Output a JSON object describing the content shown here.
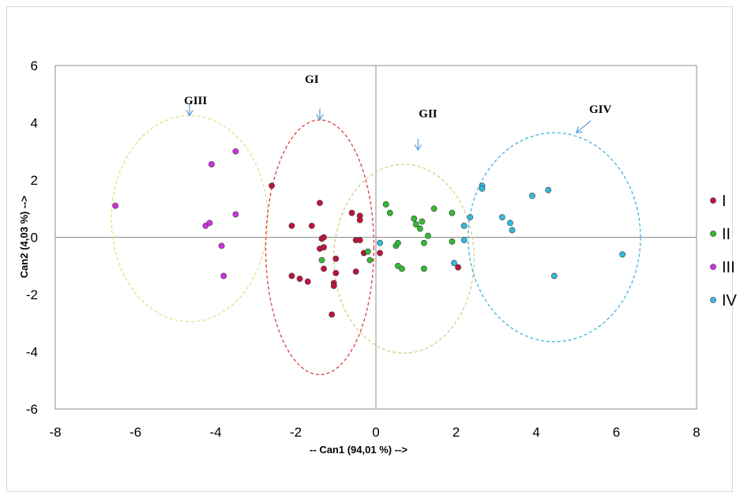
{
  "chart_data": {
    "type": "scatter",
    "title": "",
    "xlabel": "-- Can1 (94,01 %) -->",
    "ylabel": "Can2 (4,03 %) -->",
    "xlim": [
      -8,
      8
    ],
    "ylim": [
      -6,
      6
    ],
    "x_ticks": [
      "-8",
      "-6",
      "-4",
      "-2",
      "0",
      "2",
      "4",
      "6",
      "8"
    ],
    "y_ticks": [
      "-6",
      "-4",
      "-2",
      "0",
      "2",
      "4",
      "6"
    ],
    "grid": false,
    "legend_position": "right",
    "series": [
      {
        "name": "I",
        "color": "#c0143c",
        "points": [
          [
            -2.6,
            1.8
          ],
          [
            -2.1,
            0.4
          ],
          [
            -1.6,
            0.4
          ],
          [
            -1.4,
            1.2
          ],
          [
            -1.35,
            -0.05
          ],
          [
            -1.3,
            0.0
          ],
          [
            -1.4,
            -0.4
          ],
          [
            -1.3,
            -0.35
          ],
          [
            -0.6,
            0.85
          ],
          [
            -0.4,
            0.75
          ],
          [
            -0.4,
            0.6
          ],
          [
            -0.5,
            -0.1
          ],
          [
            -0.4,
            -0.1
          ],
          [
            -0.3,
            -0.55
          ],
          [
            -1.0,
            -0.75
          ],
          [
            -1.3,
            -1.1
          ],
          [
            -2.1,
            -1.35
          ],
          [
            -1.9,
            -1.45
          ],
          [
            -1.7,
            -1.55
          ],
          [
            -1.0,
            -1.25
          ],
          [
            -1.05,
            -1.6
          ],
          [
            -1.05,
            -1.7
          ],
          [
            -0.5,
            -1.2
          ],
          [
            -1.1,
            -2.7
          ],
          [
            0.1,
            -0.55
          ],
          [
            2.05,
            -1.05
          ]
        ]
      },
      {
        "name": "II",
        "color": "#33bb33",
        "points": [
          [
            0.25,
            1.15
          ],
          [
            0.35,
            0.85
          ],
          [
            0.95,
            0.65
          ],
          [
            1.45,
            1.0
          ],
          [
            1.0,
            0.45
          ],
          [
            1.15,
            0.55
          ],
          [
            1.1,
            0.3
          ],
          [
            1.3,
            0.05
          ],
          [
            1.2,
            -0.2
          ],
          [
            1.9,
            0.85
          ],
          [
            1.9,
            -0.15
          ],
          [
            0.5,
            -0.3
          ],
          [
            0.55,
            -0.2
          ],
          [
            0.55,
            -1.0
          ],
          [
            0.65,
            -1.1
          ],
          [
            1.2,
            -1.1
          ],
          [
            -1.35,
            -0.8
          ],
          [
            -0.2,
            -0.5
          ],
          [
            -0.15,
            -0.8
          ]
        ]
      },
      {
        "name": "III",
        "color": "#cc33dd",
        "points": [
          [
            -6.5,
            1.1
          ],
          [
            -4.1,
            2.55
          ],
          [
            -3.5,
            3.0
          ],
          [
            -4.25,
            0.4
          ],
          [
            -4.15,
            0.5
          ],
          [
            -3.5,
            0.8
          ],
          [
            -3.85,
            -0.3
          ],
          [
            -3.8,
            -1.35
          ]
        ]
      },
      {
        "name": "IV",
        "color": "#33bbdd",
        "points": [
          [
            2.65,
            1.8
          ],
          [
            2.65,
            1.7
          ],
          [
            3.9,
            1.45
          ],
          [
            4.3,
            1.65
          ],
          [
            2.35,
            0.7
          ],
          [
            2.2,
            0.4
          ],
          [
            3.15,
            0.7
          ],
          [
            3.35,
            0.5
          ],
          [
            3.4,
            0.25
          ],
          [
            2.2,
            -0.1
          ],
          [
            1.95,
            -0.9
          ],
          [
            4.45,
            -1.35
          ],
          [
            6.15,
            -0.6
          ],
          [
            0.1,
            -0.2
          ]
        ]
      }
    ],
    "ellipses": [
      {
        "label": "GIII",
        "color": "#e8e08a",
        "cx": -4.65,
        "cy": 0.65,
        "rx": 1.95,
        "ry": 3.6
      },
      {
        "label": "GI",
        "color": "#e04848",
        "cx": -1.4,
        "cy": -0.35,
        "rx": 1.35,
        "ry": 4.45
      },
      {
        "label": "GII",
        "color": "#d8d088",
        "cx": 0.7,
        "cy": -0.75,
        "rx": 1.75,
        "ry": 3.3
      },
      {
        "label": "GIV",
        "color": "#4cb8e0",
        "cx": 4.45,
        "cy": 0.0,
        "rx": 2.15,
        "ry": 3.65
      }
    ],
    "annotations": [
      {
        "text": "GIII",
        "x": -4.5,
        "y": 4.65
      },
      {
        "text": "GI",
        "x": -1.6,
        "y": 5.4
      },
      {
        "text": "GII",
        "x": 1.3,
        "y": 4.2
      },
      {
        "text": "GIV",
        "x": 5.6,
        "y": 4.35
      }
    ]
  }
}
